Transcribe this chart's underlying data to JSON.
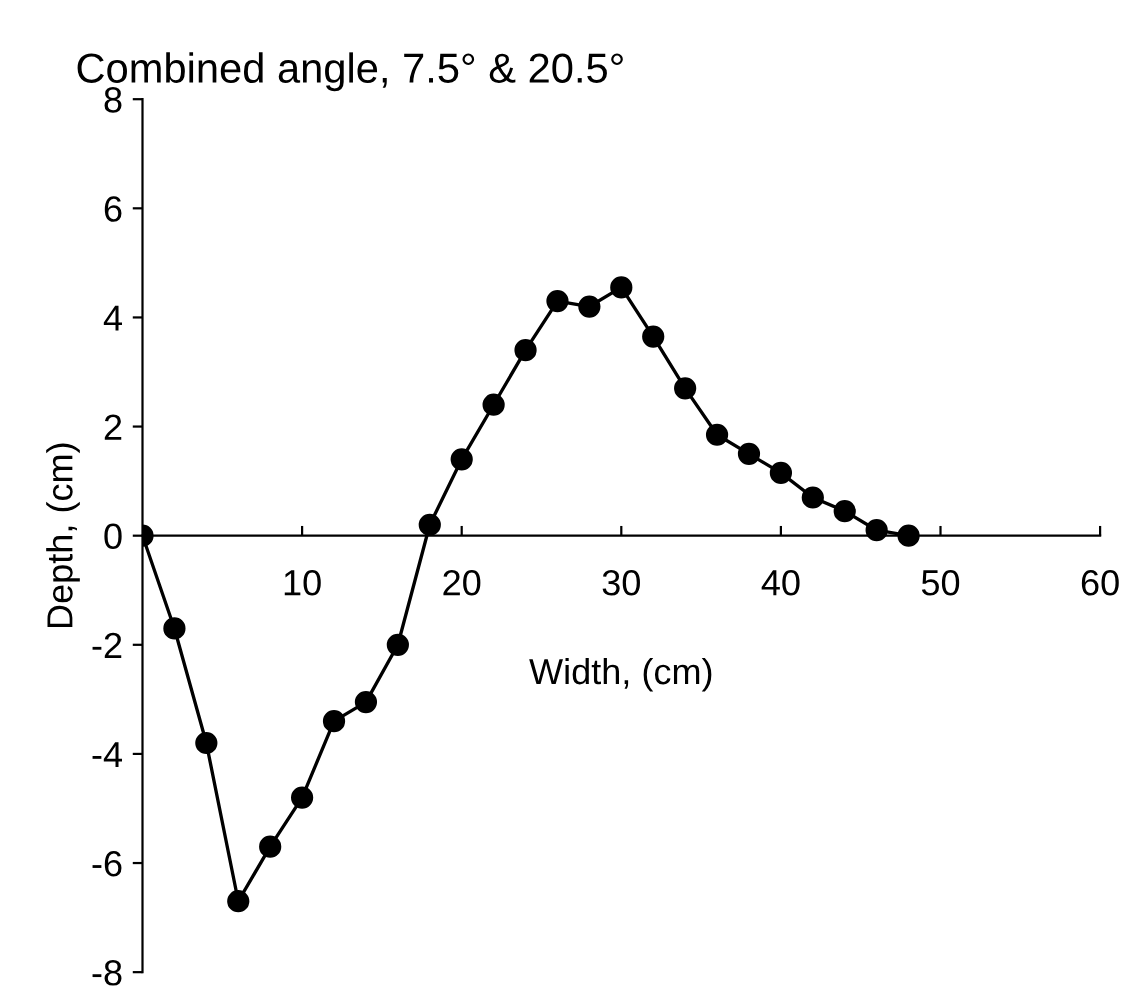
{
  "chart_data": {
    "type": "line",
    "title": "Combined angle, 7.5° & 20.5°",
    "xlabel": "Width, (cm)",
    "ylabel": "Depth, (cm)",
    "x": [
      0,
      2,
      4,
      6,
      8,
      10,
      12,
      14,
      16,
      18,
      20,
      22,
      24,
      26,
      28,
      30,
      32,
      34,
      36,
      38,
      40,
      42,
      44,
      46,
      48
    ],
    "series": [
      {
        "color": "#000000",
        "values": [
          0,
          -1.7,
          -3.8,
          -6.7,
          -5.7,
          -4.8,
          -3.4,
          -3.05,
          -2.0,
          0.2,
          1.4,
          2.4,
          3.4,
          4.3,
          4.2,
          4.55,
          3.65,
          2.7,
          1.85,
          1.5,
          1.15,
          0.7,
          0.45,
          0.1,
          0
        ]
      }
    ],
    "xlim": [
      0,
      60
    ],
    "xticks": [
      10,
      20,
      30,
      40,
      50,
      60
    ],
    "ylim": [
      -8,
      8
    ],
    "yticks": [
      -8,
      -6,
      -4,
      -2,
      0,
      2,
      4,
      6,
      8
    ],
    "marker": "circle",
    "line_style": "solid",
    "grid": false,
    "legend": false
  }
}
